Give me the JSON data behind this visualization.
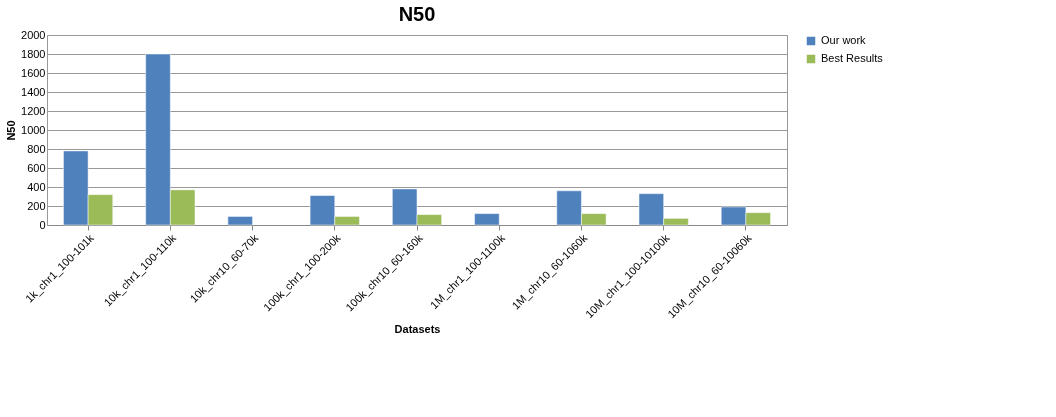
{
  "chart_data": {
    "type": "bar",
    "title": "N50",
    "xlabel": "Datasets",
    "ylabel": "N50",
    "categories": [
      "1k_chr1_100-101k",
      "10k_chr1_100-110k",
      "10k_chr10_60-70k",
      "100k_chr1_100-200k",
      "100k_chr10_60-160k",
      "1M_chr1_100-1100k",
      "1M_chr10_60-1060k",
      "10M_chr1_100-10100k",
      "10M_chr10_60-10060k"
    ],
    "series": [
      {
        "name": "Our work",
        "color": "#4f81bd",
        "values": [
          780,
          1800,
          90,
          310,
          380,
          120,
          360,
          330,
          190
        ]
      },
      {
        "name": "Best Results",
        "color": "#9bbb59",
        "values": [
          320,
          370,
          null,
          90,
          110,
          null,
          120,
          70,
          130
        ]
      }
    ],
    "ylim": [
      0,
      2000
    ],
    "yticks": [
      0,
      200,
      400,
      600,
      800,
      1000,
      1200,
      1400,
      1600,
      1800,
      2000
    ],
    "grid": "y",
    "legend": "right"
  }
}
